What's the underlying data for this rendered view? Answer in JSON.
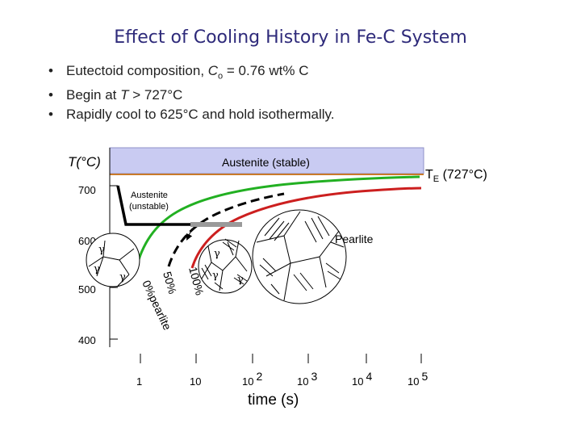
{
  "slide": {
    "title": "Effect of Cooling History in Fe-C System",
    "bullets": [
      {
        "pre": "Eutectoid composition, ",
        "italic": "C",
        "sub": "o",
        "post": " = 0.76 wt% C"
      },
      {
        "pre": "Begin at ",
        "italic": "T",
        "sub": "",
        "post": " > 727°C"
      },
      {
        "pre": "Rapidly cool to 625°C and hold isothermally.",
        "italic": "",
        "sub": "",
        "post": ""
      }
    ]
  },
  "diagram": {
    "y_axis_label": "T(°C)",
    "y_ticks": [
      "700",
      "600",
      "500",
      "400"
    ],
    "x_ticks": [
      {
        "base": "1",
        "exp": ""
      },
      {
        "base": "10",
        "exp": ""
      },
      {
        "base": "10",
        "exp": "2"
      },
      {
        "base": "10",
        "exp": "3"
      },
      {
        "base": "10",
        "exp": "4"
      },
      {
        "base": "10",
        "exp": "5"
      }
    ],
    "x_axis_label": "time (s)",
    "region_austenite_stable": "Austenite (stable)",
    "eutectoid_line_label_main": "T",
    "eutectoid_line_label_sub": "E",
    "eutectoid_line_label_rest": " (727°C)",
    "austenite_unstable_line1": "Austenite",
    "austenite_unstable_line2": "(unstable)",
    "pearlite_label": "Pearlite",
    "gamma_symbol": "γ",
    "curve_0_label": "0%pearlite",
    "curve_50_label": "50%",
    "curve_100_label": "100%",
    "colors": {
      "stable_region_fill": "#c9cbf2",
      "eutectoid_line": "#c87a2a",
      "curve_0": "#22b022",
      "curve_50": "#000000",
      "curve_100": "#cc1f1f",
      "title": "#2e2a7a"
    }
  }
}
